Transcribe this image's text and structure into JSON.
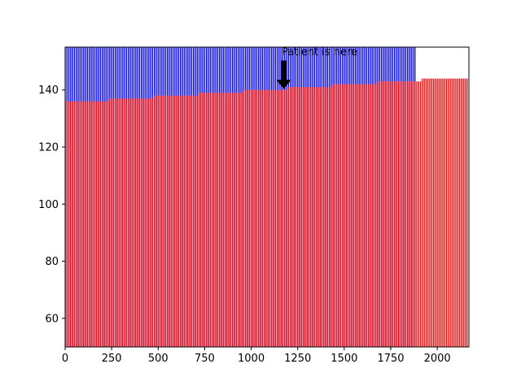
{
  "chart_data": {
    "type": "bar",
    "title": "",
    "xlabel": "",
    "ylabel": "",
    "xlim": [
      0,
      2170
    ],
    "ylim": [
      50,
      155
    ],
    "bar_width": 6,
    "grid": false,
    "xticks": [
      0,
      250,
      500,
      750,
      1000,
      1250,
      1500,
      1750,
      2000
    ],
    "yticks": [
      60,
      80,
      100,
      120,
      140
    ],
    "series": [
      {
        "color": "#0000ff",
        "x_start": 0,
        "x_end": 1880,
        "x_step": 10,
        "values": [
          155
        ]
      },
      {
        "color": "#ff0000",
        "x_start": 0,
        "x_end": 2160,
        "x_step": 10,
        "steps": [
          {
            "from": 0,
            "value": 136
          },
          {
            "from": 240,
            "value": 137
          },
          {
            "from": 480,
            "value": 138
          },
          {
            "from": 720,
            "value": 139
          },
          {
            "from": 960,
            "value": 140
          },
          {
            "from": 1200,
            "value": 141
          },
          {
            "from": 1440,
            "value": 142
          },
          {
            "from": 1680,
            "value": 143
          },
          {
            "from": 1920,
            "value": 144
          }
        ]
      }
    ],
    "annotation": {
      "text": "Patient is here",
      "arrow_x": 1175,
      "arrow_tip_y": 140,
      "text_x": 1185,
      "text_y": 153
    }
  }
}
